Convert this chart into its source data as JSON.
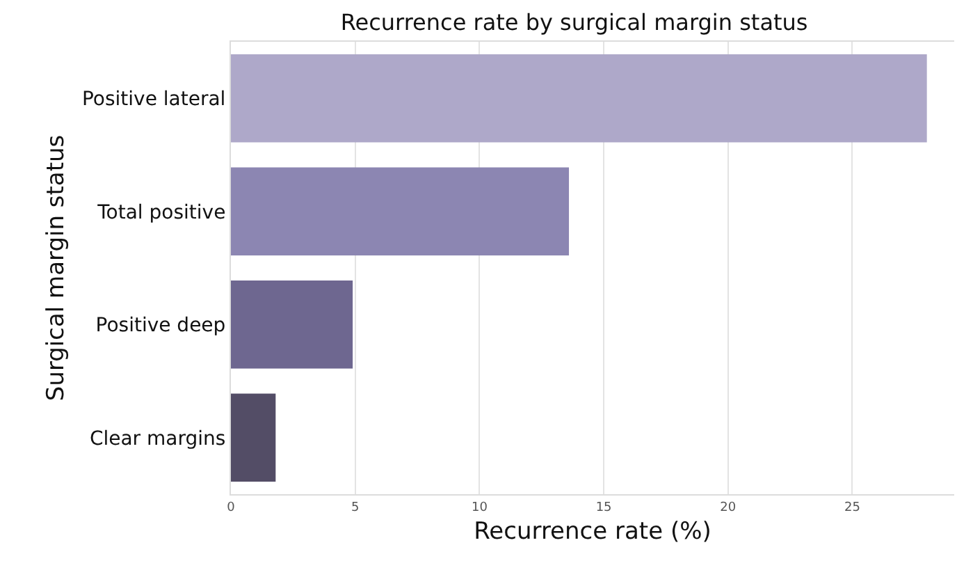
{
  "chart_data": {
    "type": "bar",
    "orientation": "horizontal",
    "title": "Recurrence rate by surgical margin status",
    "xlabel": "Recurrence rate (%)",
    "ylabel": "Surgical margin status",
    "categories": [
      "Positive lateral",
      "Total positive",
      "Positive deep",
      "Clear margins"
    ],
    "values": [
      28.0,
      13.6,
      4.9,
      1.8
    ],
    "colors": [
      "#aea8c9",
      "#8c86b2",
      "#6e6790",
      "#534d66"
    ],
    "xlim": [
      0,
      29.1
    ],
    "xticks": [
      0,
      5,
      10,
      15,
      20,
      25
    ],
    "grid": "x"
  }
}
